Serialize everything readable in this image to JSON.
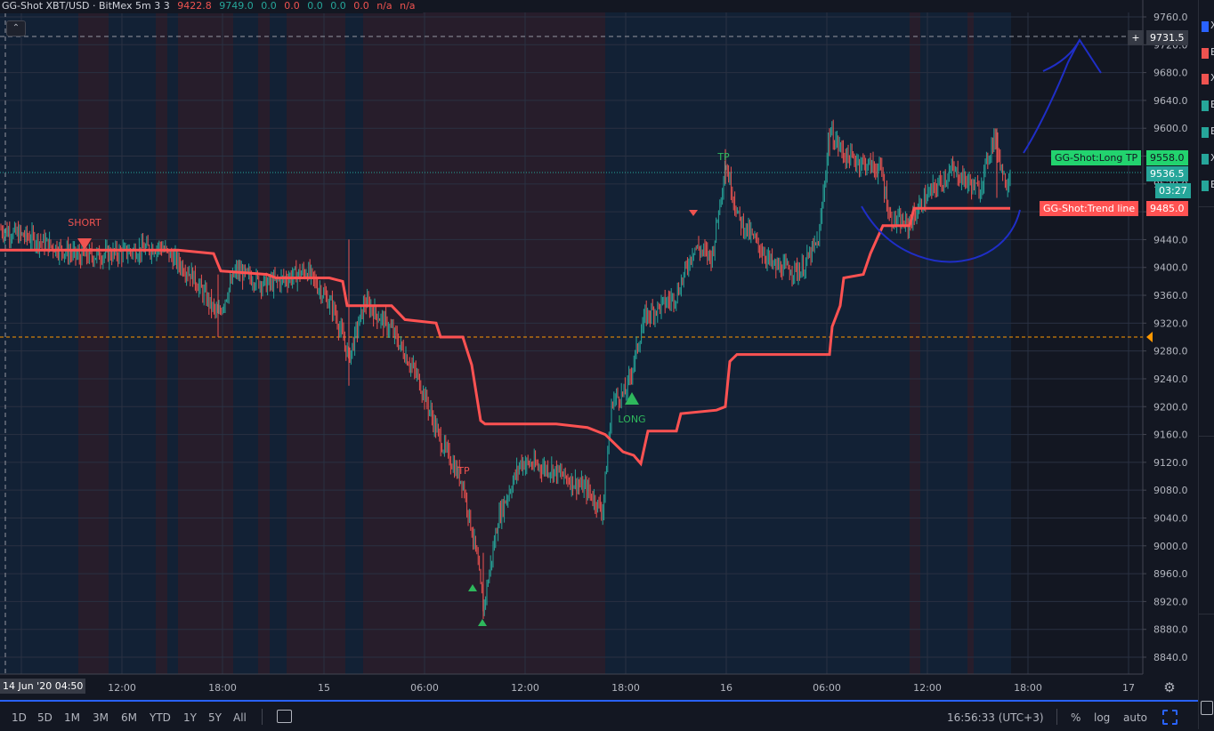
{
  "legend": {
    "symbol": "GG-Shot XBT/USD · BitMex 5m 3 3",
    "values": [
      "9422.8",
      "9749.0",
      "0.0",
      "0.0",
      "0.0",
      "0.0",
      "0.0",
      "n/a",
      "n/a"
    ]
  },
  "collapse_label": "⌃",
  "price_axis": {
    "ticks": [
      "9760.0",
      "9720.0",
      "9680.0",
      "9640.0",
      "9600.0",
      "9560.0",
      "9520.0",
      "9480.0",
      "9440.0",
      "9400.0",
      "9360.0",
      "9320.0",
      "9280.0",
      "9240.0",
      "9200.0",
      "9160.0",
      "9120.0",
      "9080.0",
      "9040.0",
      "9000.0",
      "8960.0",
      "8920.0",
      "8880.0",
      "8840.0"
    ],
    "crosshair_price": "9731.5",
    "last_price": "9536.5",
    "countdown": "03:27",
    "long_tp_label": "GG-Shot:Long TP",
    "long_tp_price": "9558.0",
    "trend_label": "GG-Shot:Trend line",
    "trend_price": "9485.0"
  },
  "time_axis": {
    "current_label": "14 Jun '20  04:50",
    "ticks": [
      "12:00",
      "18:00",
      "15",
      "06:00",
      "12:00",
      "18:00",
      "16",
      "06:00",
      "12:00",
      "18:00",
      "17"
    ]
  },
  "annotations": {
    "short": "SHORT",
    "long": "LONG",
    "tp1": "TP",
    "tp2": "TP"
  },
  "colors": {
    "background": "#131722",
    "bull": "#26a69a",
    "bear": "#ef5350",
    "trend": "#ff5252",
    "drawing": "#1f2ec7",
    "long_tp_bg": "#22d36e",
    "trend_bg": "#ff5252",
    "last_price_bg": "#26a69a",
    "orange_line": "#ff9800"
  },
  "bottom_bar": {
    "ranges": [
      "1D",
      "5D",
      "1M",
      "3M",
      "6M",
      "YTD",
      "1Y",
      "5Y",
      "All"
    ],
    "compare_icon": "compare-icon",
    "time": "16:56:33 (UTC+3)",
    "percent": "%",
    "log": "log",
    "auto": "auto"
  },
  "watchlist_letters": [
    "X",
    "B",
    "X",
    "B",
    "B",
    "X",
    "B"
  ]
}
